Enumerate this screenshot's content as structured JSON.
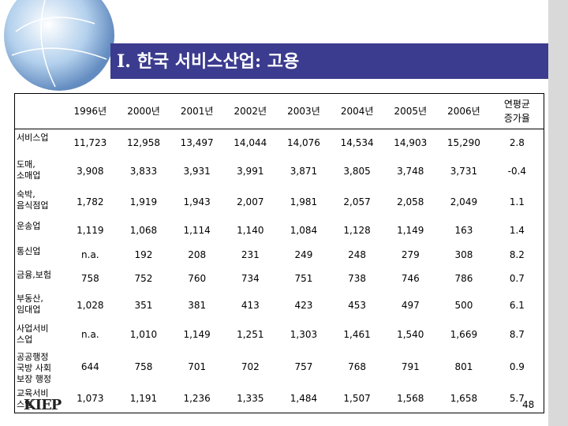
{
  "title": "I. 한국 서비스산업: 고용",
  "table": {
    "header": [
      "1996년",
      "2000년",
      "2001년",
      "2002년",
      "2003년",
      "2004년",
      "2005년",
      "2006년",
      "연평균\n증가율"
    ],
    "rows": [
      {
        "label": "서비스업",
        "values": [
          "11,723",
          "12,958",
          "13,497",
          "14,044",
          "14,076",
          "14,534",
          "14,903",
          "15,290",
          "2.8"
        ]
      },
      {
        "label": "도매,\n소매업",
        "values": [
          "3,908",
          "3,833",
          "3,931",
          "3,991",
          "3,871",
          "3,805",
          "3,748",
          "3,731",
          "-0.4"
        ]
      },
      {
        "label": "숙박,\n음식점업",
        "values": [
          "1,782",
          "1,919",
          "1,943",
          "2,007",
          "1,981",
          "2,057",
          "2,058",
          "2,049",
          "1.1"
        ]
      },
      {
        "label": "운송업",
        "values": [
          "1,119",
          "1,068",
          "1,114",
          "1,140",
          "1,084",
          "1,128",
          "1,149",
          "163",
          "1.4"
        ]
      },
      {
        "label": "통신업",
        "values": [
          "n.a.",
          "192",
          "208",
          "231",
          "249",
          "248",
          "279",
          "308",
          "8.2"
        ]
      },
      {
        "label": "금융,보험",
        "values": [
          "758",
          "752",
          "760",
          "734",
          "751",
          "738",
          "746",
          "786",
          "0.7"
        ]
      },
      {
        "label": "부동산,\n임대업",
        "values": [
          "1,028",
          "351",
          "381",
          "413",
          "423",
          "453",
          "497",
          "500",
          "6.1"
        ]
      },
      {
        "label": "사업서비\n스업",
        "values": [
          "n.a.",
          "1,010",
          "1,149",
          "1,251",
          "1,303",
          "1,461",
          "1,540",
          "1,669",
          "8.7"
        ]
      },
      {
        "label": "공공행정\n국방 사회\n보장 행정",
        "values": [
          "644",
          "758",
          "701",
          "702",
          "757",
          "768",
          "791",
          "801",
          "0.9"
        ]
      },
      {
        "label": "교육서비\n스업",
        "values": [
          "1,073",
          "1,191",
          "1,236",
          "1,335",
          "1,484",
          "1,507",
          "1,568",
          "1,658",
          "5.7"
        ]
      }
    ]
  },
  "footer": {
    "logo": "KIEP",
    "page": "48"
  }
}
